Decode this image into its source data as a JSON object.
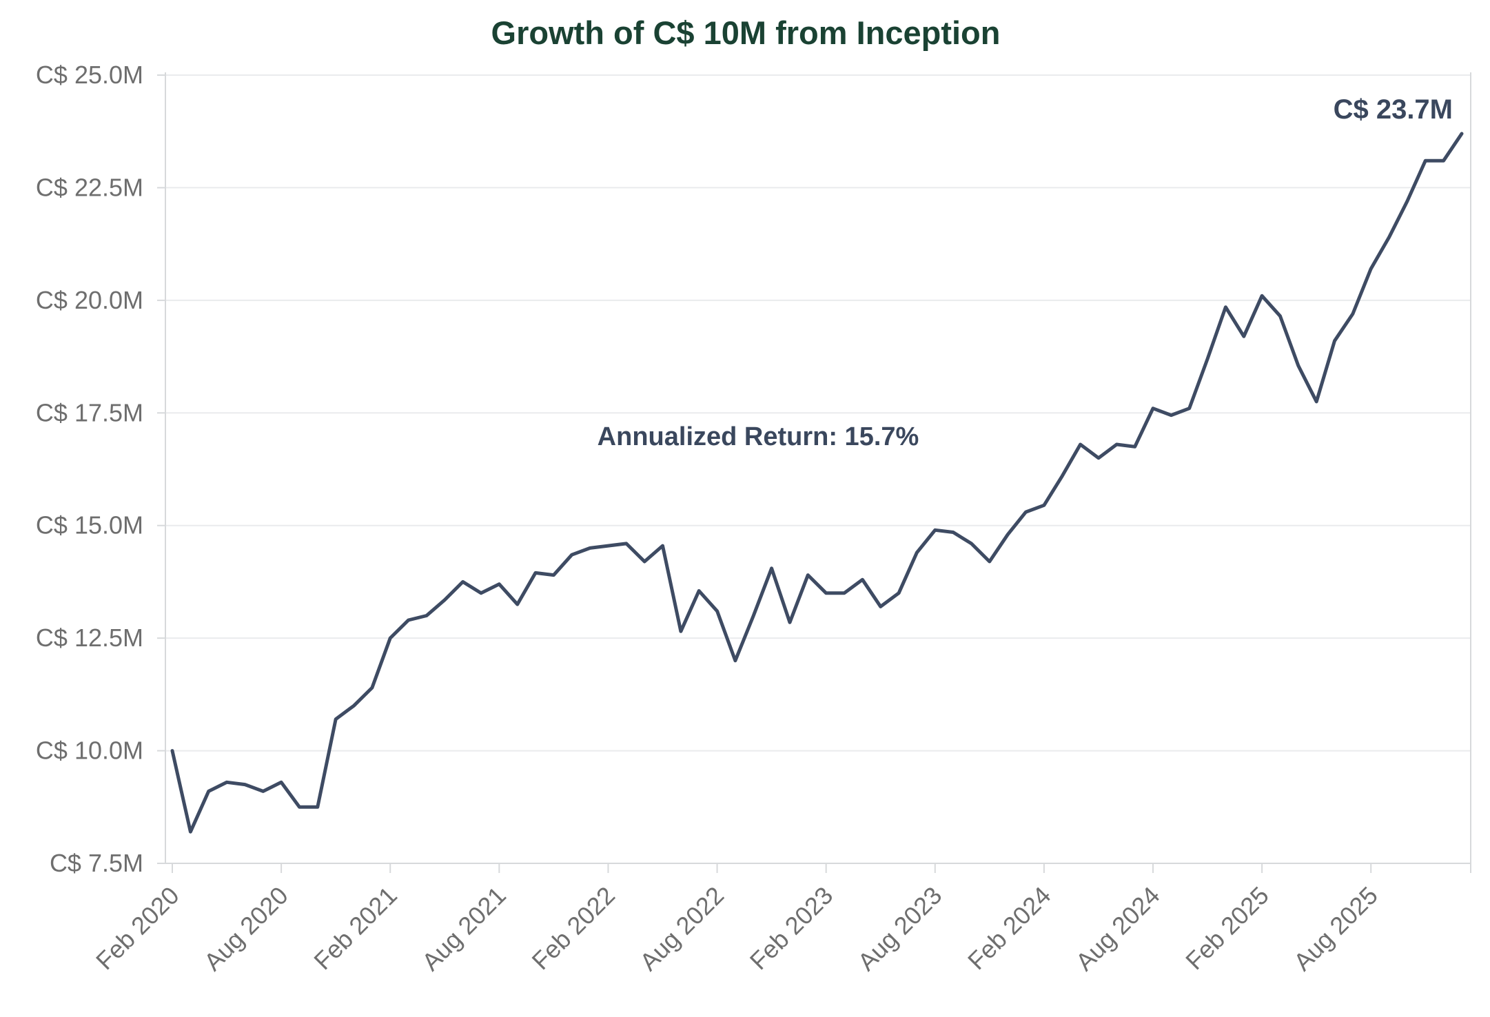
{
  "chart": {
    "title": "Growth of C$ 10M from Inception",
    "annotation": "Annualized Return: 15.7%",
    "end_label": "C$ 23.7M"
  },
  "colors": {
    "background": "#ffffff",
    "title": "#1a4233",
    "line": "#3e4b63",
    "annotation": "#3a475d",
    "end_label": "#3a475d",
    "tick_label": "#6e6e6e",
    "gridline": "#eaebed",
    "axis_border": "#d7d9db"
  },
  "chart_data": {
    "type": "line",
    "title": "Growth of C$ 10M from Inception",
    "annotation": "Annualized Return: 15.7%",
    "end_value_label": "C$ 23.7M",
    "x": [
      "Feb 2020",
      "Mar 2020",
      "Apr 2020",
      "May 2020",
      "Jun 2020",
      "Jul 2020",
      "Aug 2020",
      "Sep 2020",
      "Oct 2020",
      "Nov 2020",
      "Dec 2020",
      "Jan 2021",
      "Feb 2021",
      "Mar 2021",
      "Apr 2021",
      "May 2021",
      "Jun 2021",
      "Jul 2021",
      "Aug 2021",
      "Sep 2021",
      "Oct 2021",
      "Nov 2021",
      "Dec 2021",
      "Jan 2022",
      "Feb 2022",
      "Mar 2022",
      "Apr 2022",
      "May 2022",
      "Jun 2022",
      "Jul 2022",
      "Aug 2022",
      "Sep 2022",
      "Oct 2022",
      "Nov 2022",
      "Dec 2022",
      "Jan 2023",
      "Feb 2023",
      "Mar 2023",
      "Apr 2023",
      "May 2023",
      "Jun 2023",
      "Jul 2023",
      "Aug 2023",
      "Sep 2023",
      "Oct 2023",
      "Nov 2023",
      "Dec 2023",
      "Jan 2024",
      "Feb 2024",
      "Mar 2024",
      "Apr 2024",
      "May 2024",
      "Jun 2024",
      "Jul 2024",
      "Aug 2024",
      "Sep 2024",
      "Oct 2024",
      "Nov 2024",
      "Dec 2024",
      "Jan 2025",
      "Feb 2025",
      "Mar 2025",
      "Apr 2025",
      "May 2025",
      "Jun 2025",
      "Jul 2025",
      "Aug 2025",
      "Sep 2025",
      "Oct 2025",
      "Nov 2025",
      "Dec 2025",
      "Jan 2026"
    ],
    "values": [
      10.0,
      8.2,
      9.1,
      9.3,
      9.25,
      9.1,
      9.3,
      8.75,
      8.75,
      10.7,
      11.0,
      11.4,
      12.5,
      12.9,
      13.0,
      13.35,
      13.75,
      13.5,
      13.7,
      13.25,
      13.95,
      13.9,
      14.35,
      14.5,
      14.55,
      14.6,
      14.2,
      14.55,
      12.65,
      13.55,
      13.1,
      12.0,
      13.0,
      14.05,
      12.85,
      13.9,
      13.5,
      13.5,
      13.8,
      13.2,
      13.5,
      14.4,
      14.9,
      14.85,
      14.6,
      14.2,
      14.8,
      15.3,
      15.45,
      16.1,
      16.8,
      16.5,
      16.8,
      16.75,
      17.6,
      17.45,
      17.6,
      18.7,
      19.85,
      19.2,
      20.1,
      19.65,
      18.55,
      17.75,
      19.1,
      19.7,
      20.7,
      21.4,
      22.2,
      23.1,
      23.1,
      23.7
    ],
    "y_ticks": [
      {
        "value": 25.0,
        "label": "C$ 25.0M"
      },
      {
        "value": 22.5,
        "label": "C$ 22.5M"
      },
      {
        "value": 20.0,
        "label": "C$ 20.0M"
      },
      {
        "value": 17.5,
        "label": "C$ 17.5M"
      },
      {
        "value": 15.0,
        "label": "C$ 15.0M"
      },
      {
        "value": 12.5,
        "label": "C$ 12.5M"
      },
      {
        "value": 10.0,
        "label": "C$ 10.0M"
      },
      {
        "value": 7.5,
        "label": "C$ 7.5M"
      }
    ],
    "x_tick_labels": [
      "Feb 2020",
      "Aug 2020",
      "Feb 2021",
      "Aug 2021",
      "Feb 2022",
      "Aug 2022",
      "Feb 2023",
      "Aug 2023",
      "Feb 2024",
      "Aug 2024",
      "Feb 2025",
      "Aug 2025"
    ],
    "x_tick_interval": 6,
    "ylim": [
      7.5,
      25.0
    ],
    "xlabel": "",
    "ylabel": "",
    "grid": "horizontal",
    "legend": "none"
  }
}
